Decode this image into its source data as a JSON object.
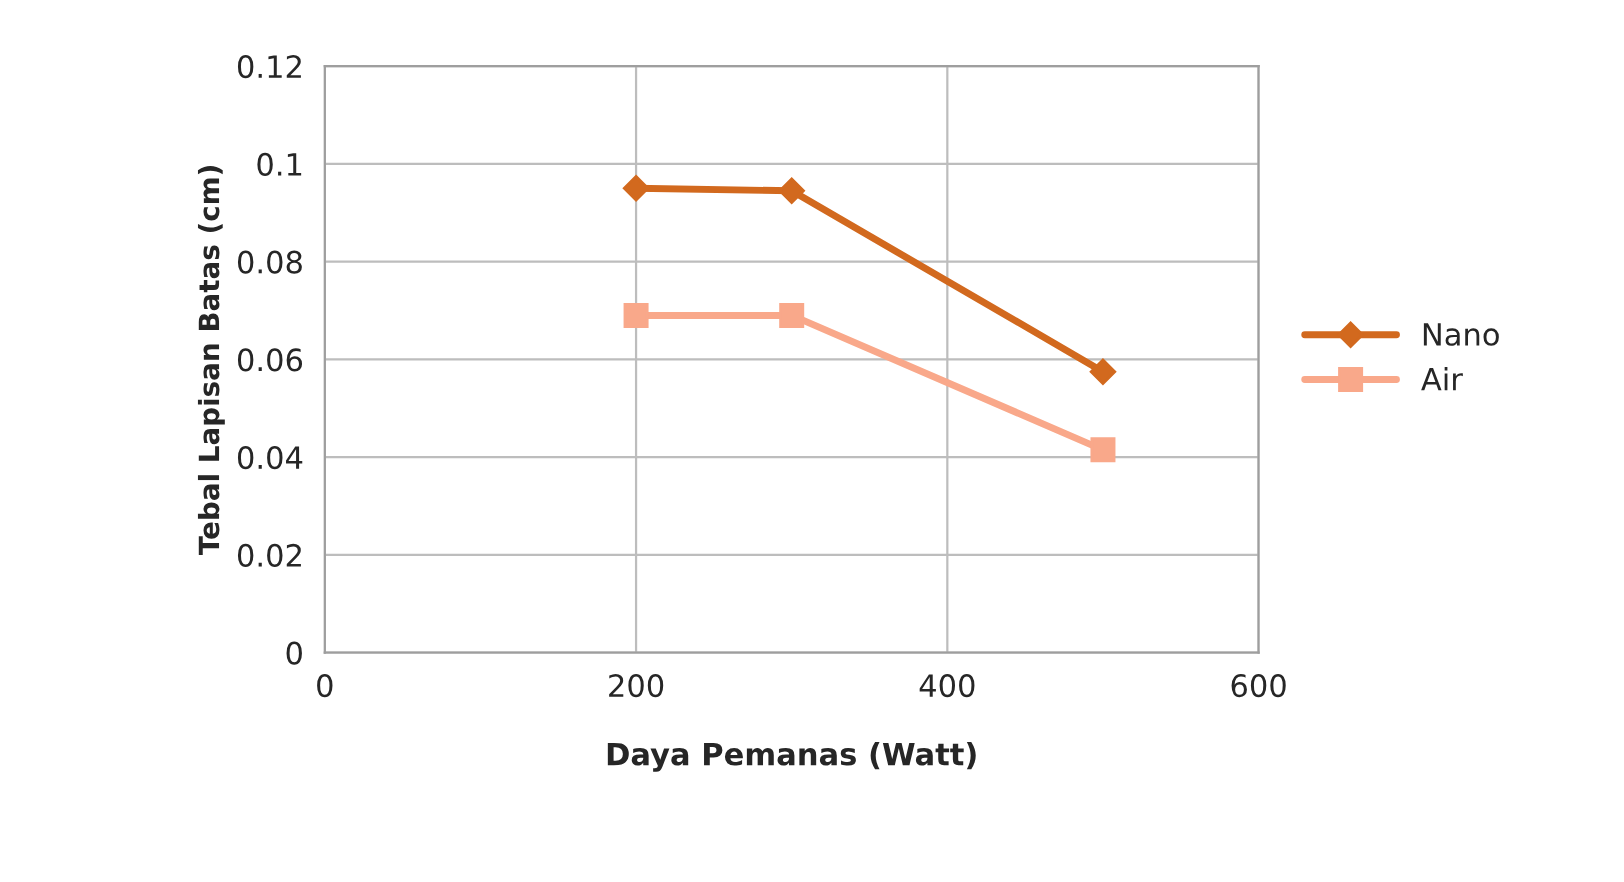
{
  "chart_data": {
    "type": "line",
    "xlabel": "Daya Pemanas (Watt)",
    "ylabel": "Tebal Lapisan Batas (cm)",
    "x": [
      200,
      300,
      500
    ],
    "series": [
      {
        "name": "Nano",
        "color": "#d2691e",
        "values": [
          0.095,
          0.0945,
          0.0575
        ],
        "marker": "diamond"
      },
      {
        "name": "Air",
        "color": "#f9a88a",
        "values": [
          0.069,
          0.069,
          0.0415
        ],
        "marker": "square"
      }
    ],
    "xlim": [
      0,
      600
    ],
    "xticks": [
      0,
      200,
      400,
      600
    ],
    "ylim": [
      0,
      0.12
    ],
    "yticks": [
      0,
      {
        "value": 0.02,
        "label": "0.02"
      },
      {
        "value": 0.04,
        "label": "0.04"
      },
      {
        "value": 0.06,
        "label": "0.06"
      },
      {
        "value": 0.08,
        "label": "0.08"
      },
      {
        "value": 0.1,
        "label": "0.1"
      },
      {
        "value": 0.12,
        "label": "0.12"
      }
    ],
    "grid": true,
    "legend": "right",
    "line_style": "solid"
  }
}
